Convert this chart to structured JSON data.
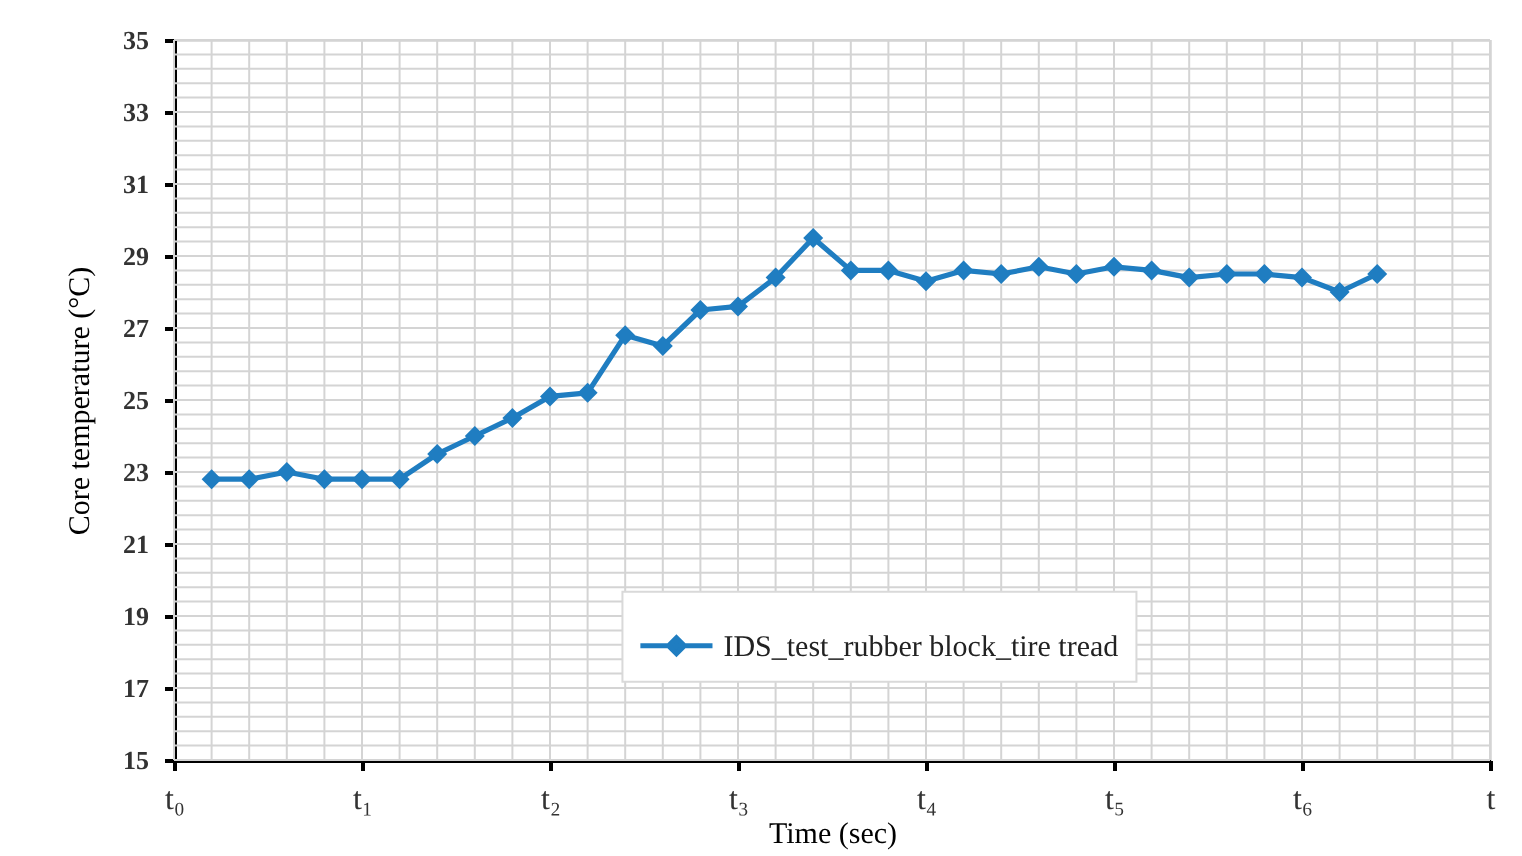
{
  "chart_data": {
    "type": "line",
    "xlabel": "Time (sec)",
    "ylabel": "Core temperature (°C)",
    "categories": [
      "t₀",
      null,
      null,
      null,
      null,
      "t₁",
      null,
      null,
      null,
      null,
      "t₂",
      null,
      null,
      null,
      null,
      "t₃",
      null,
      null,
      null,
      null,
      "t₄",
      null,
      null,
      null,
      null,
      "t₅",
      null,
      null,
      null,
      null,
      "t₆",
      null,
      null,
      null,
      null,
      "t"
    ],
    "series": [
      {
        "name": "IDS_test_rubber block_tire tread",
        "color": "#1f7dc1",
        "values": [
          null,
          22.8,
          22.8,
          23.0,
          22.8,
          22.8,
          22.8,
          23.5,
          24.0,
          24.5,
          25.1,
          25.2,
          26.8,
          26.5,
          27.5,
          27.6,
          28.4,
          29.5,
          28.6,
          28.6,
          28.3,
          28.6,
          28.5,
          28.7,
          28.5,
          28.7,
          28.6,
          28.4,
          28.5,
          28.5,
          28.4,
          28.0,
          28.5,
          null,
          null,
          null
        ]
      }
    ],
    "ylim": [
      15,
      35
    ],
    "yticks": [
      15,
      {
        "value": 15.4,
        "label": null
      },
      {
        "value": 15.8,
        "label": null
      },
      {
        "value": 16.2,
        "label": null
      },
      {
        "value": 16.6,
        "label": null
      },
      17,
      {
        "value": 17.4,
        "label": null
      },
      {
        "value": 17.8,
        "label": null
      },
      {
        "value": 18.2,
        "label": null
      },
      {
        "value": 18.6,
        "label": null
      },
      19,
      {
        "value": 19.4,
        "label": null
      },
      {
        "value": 19.8,
        "label": null
      },
      {
        "value": 20.2,
        "label": null
      },
      {
        "value": 20.6,
        "label": null
      },
      21,
      {
        "value": 21.4,
        "label": null
      },
      {
        "value": 21.8,
        "label": null
      },
      {
        "value": 22.2,
        "label": null
      },
      {
        "value": 22.6,
        "label": null
      },
      23,
      {
        "value": 23.4,
        "label": null
      },
      {
        "value": 23.8,
        "label": null
      },
      {
        "value": 24.2,
        "label": null
      },
      {
        "value": 24.6,
        "label": null
      },
      25,
      {
        "value": 25.4,
        "label": null
      },
      {
        "value": 25.8,
        "label": null
      },
      {
        "value": 26.2,
        "label": null
      },
      {
        "value": 26.6,
        "label": null
      },
      27,
      {
        "value": 27.4,
        "label": null
      },
      {
        "value": 27.8,
        "label": null
      },
      {
        "value": 28.2,
        "label": null
      },
      {
        "value": 28.6,
        "label": null
      },
      29,
      {
        "value": 29.4,
        "label": null
      },
      {
        "value": 29.8,
        "label": null
      },
      {
        "value": 30.2,
        "label": null
      },
      {
        "value": 30.6,
        "label": null
      },
      31,
      {
        "value": 31.4,
        "label": null
      },
      {
        "value": 31.8,
        "label": null
      },
      {
        "value": 32.2,
        "label": null
      },
      {
        "value": 32.6,
        "label": null
      },
      33,
      {
        "value": 33.4,
        "label": null
      },
      {
        "value": 33.8,
        "label": null
      },
      {
        "value": 34.2,
        "label": null
      },
      {
        "value": 34.6,
        "label": null
      },
      35
    ],
    "grid": true,
    "legend": "bottom",
    "marker": "diamond",
    "line_style": "solid"
  }
}
